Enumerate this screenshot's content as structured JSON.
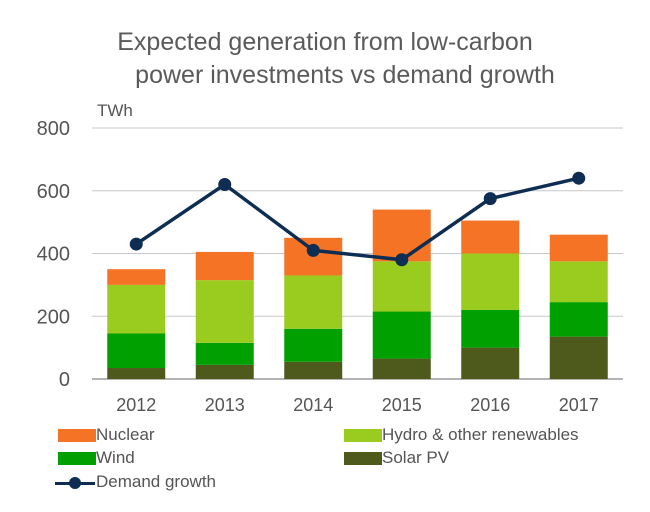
{
  "chart_data": {
    "type": "bar",
    "stacked": true,
    "title_line1": "Expected generation from low-carbon",
    "title_line2": "power investments vs demand growth",
    "ylabel": "TWh",
    "xlabel": "",
    "ylim": [
      0,
      800
    ],
    "yticks": [
      0,
      200,
      400,
      600,
      800
    ],
    "grid": true,
    "legend_position": "bottom",
    "categories": [
      "2012",
      "2013",
      "2014",
      "2015",
      "2016",
      "2017"
    ],
    "series": [
      {
        "name": "Solar PV",
        "color": "#4d5a1c",
        "values": [
          35,
          45,
          55,
          65,
          100,
          135
        ]
      },
      {
        "name": "Wind",
        "color": "#00a000",
        "values": [
          110,
          70,
          105,
          150,
          120,
          110
        ]
      },
      {
        "name": "Hydro & other renewables",
        "color": "#99cc1f",
        "values": [
          155,
          200,
          170,
          160,
          180,
          130
        ]
      },
      {
        "name": "Nuclear",
        "color": "#f47324",
        "values": [
          50,
          90,
          120,
          165,
          105,
          85
        ]
      }
    ],
    "line_series": {
      "name": "Demand growth",
      "color": "#0d2d52",
      "values": [
        430,
        620,
        410,
        380,
        575,
        640
      ]
    }
  }
}
